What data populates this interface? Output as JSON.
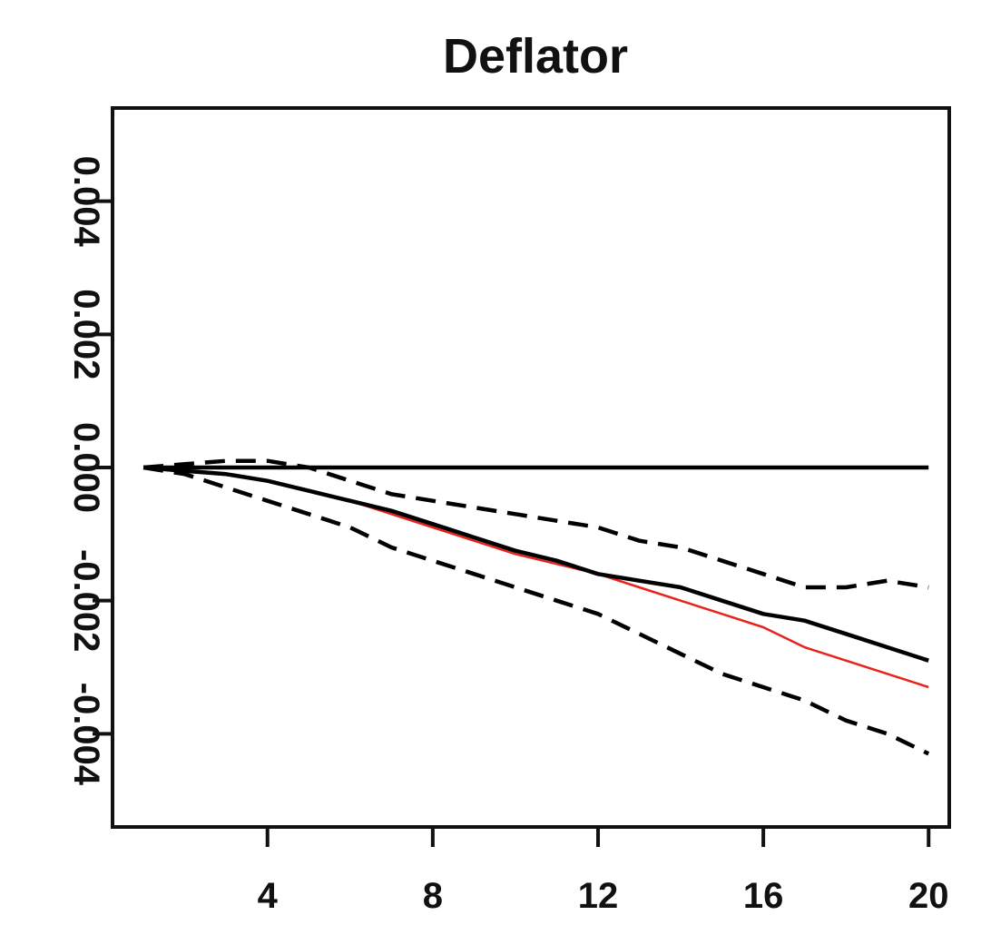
{
  "chart_data": {
    "type": "line",
    "title": "Deflator",
    "xlabel": "",
    "ylabel": "",
    "xlim": [
      0.25,
      20.5
    ],
    "ylim": [
      -0.0054,
      0.0054
    ],
    "x_ticks": [
      4,
      8,
      12,
      16,
      20
    ],
    "x_tick_labels": [
      "4",
      "8",
      "12",
      "16",
      "20"
    ],
    "y_ticks": [
      -0.004,
      -0.002,
      0.0,
      0.002,
      0.004
    ],
    "y_tick_labels": [
      "-0.004",
      "-0.002",
      "0.000",
      "0.002",
      "0.004"
    ],
    "grid": false,
    "legend": "none",
    "series": [
      {
        "style": "solid",
        "color": "#000000",
        "x": [
          1,
          20
        ],
        "values": [
          0.0,
          0.0
        ]
      },
      {
        "style": "solid",
        "color": "#000000",
        "x": [
          1,
          2,
          3,
          4,
          5,
          6,
          7,
          8,
          9,
          10,
          11,
          12,
          13,
          14,
          15,
          16,
          17,
          18,
          19,
          20
        ],
        "values": [
          0.0,
          -5e-05,
          -0.0001,
          -0.0002,
          -0.00035,
          -0.0005,
          -0.00065,
          -0.00085,
          -0.00105,
          -0.00125,
          -0.0014,
          -0.0016,
          -0.0017,
          -0.0018,
          -0.002,
          -0.0022,
          -0.0023,
          -0.0025,
          -0.0027,
          -0.0029
        ]
      },
      {
        "style": "solid",
        "color": "#e8231e",
        "x": [
          1,
          2,
          3,
          4,
          5,
          6,
          7,
          8,
          9,
          10,
          11,
          12,
          13,
          14,
          15,
          16,
          17,
          18,
          19,
          20
        ],
        "values": [
          0.0,
          -5e-05,
          -0.0001,
          -0.0002,
          -0.00035,
          -0.0005,
          -0.0007,
          -0.0009,
          -0.0011,
          -0.0013,
          -0.00145,
          -0.0016,
          -0.0018,
          -0.002,
          -0.0022,
          -0.0024,
          -0.0027,
          -0.0029,
          -0.0031,
          -0.0033
        ]
      },
      {
        "style": "dashed",
        "color": "#000000",
        "x": [
          1,
          2,
          3,
          4,
          5,
          6,
          7,
          8,
          9,
          10,
          11,
          12,
          13,
          14,
          15,
          16,
          17,
          18,
          19,
          20
        ],
        "values": [
          0.0,
          5e-05,
          0.0001,
          0.0001,
          0.0,
          -0.0002,
          -0.0004,
          -0.0005,
          -0.0006,
          -0.0007,
          -0.0008,
          -0.0009,
          -0.0011,
          -0.0012,
          -0.0014,
          -0.0016,
          -0.0018,
          -0.0018,
          -0.0017,
          -0.0018
        ]
      },
      {
        "style": "dashed",
        "color": "#000000",
        "x": [
          1,
          2,
          3,
          4,
          5,
          6,
          7,
          8,
          9,
          10,
          11,
          12,
          13,
          14,
          15,
          16,
          17,
          18,
          19,
          20
        ],
        "values": [
          0.0,
          -0.0001,
          -0.0003,
          -0.0005,
          -0.0007,
          -0.0009,
          -0.0012,
          -0.0014,
          -0.0016,
          -0.0018,
          -0.002,
          -0.0022,
          -0.0025,
          -0.0028,
          -0.0031,
          -0.0033,
          -0.0035,
          -0.0038,
          -0.004,
          -0.0043
        ]
      }
    ]
  }
}
